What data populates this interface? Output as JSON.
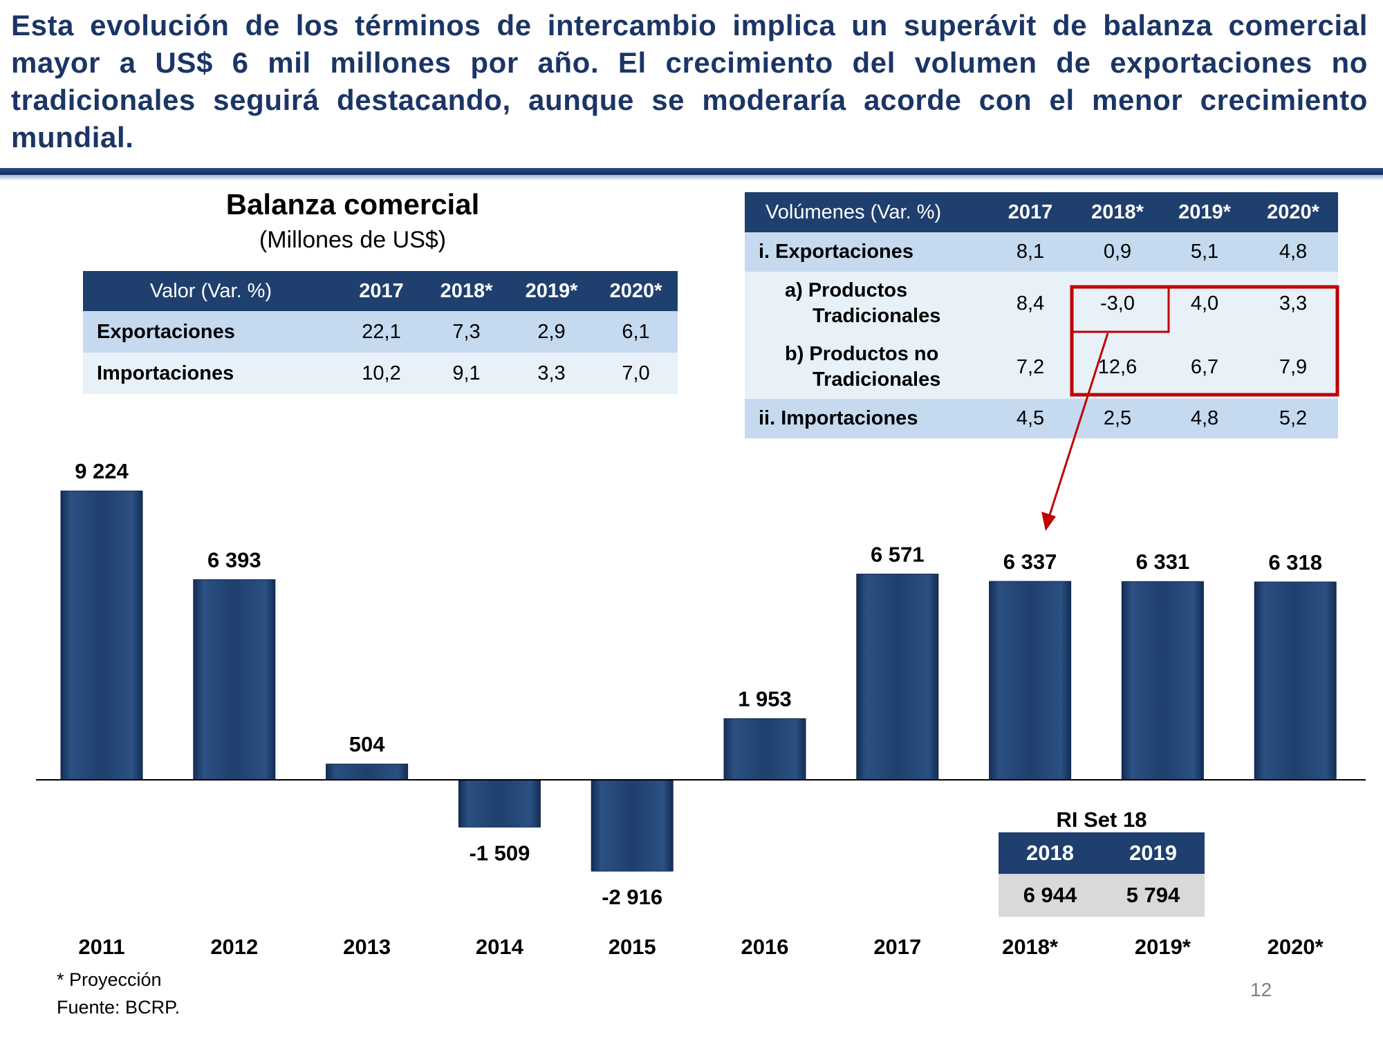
{
  "headline": "Esta evolución de los términos de intercambio implica un superávit de balanza comercial mayor a US$ 6 mil millones por año. El crecimiento del volumen de exportaciones no tradicionales seguirá destacando, aunque se moderaría acorde con el menor crecimiento mundial.",
  "chart_data": {
    "type": "bar",
    "title": "Balanza comercial",
    "subtitle": "(Millones de US$)",
    "categories": [
      "2011",
      "2012",
      "2013",
      "2014",
      "2015",
      "2016",
      "2017",
      "2018*",
      "2019*",
      "2020*"
    ],
    "values": [
      9224,
      6393,
      504,
      -1509,
      -2916,
      1953,
      6571,
      6337,
      6331,
      6318
    ],
    "value_labels": [
      "9 224",
      "6 393",
      "504",
      "-1 509",
      "-2 916",
      "1 953",
      "6 571",
      "6 337",
      "6 331",
      "6 318"
    ],
    "bar_color": "#1f3f6e",
    "grid": false,
    "legend": "none"
  },
  "valor_table": {
    "header": [
      "Valor  (Var. %)",
      "2017",
      "2018*",
      "2019*",
      "2020*"
    ],
    "rows": [
      {
        "label": "Exportaciones",
        "values": [
          "22,1",
          "7,3",
          "2,9",
          "6,1"
        ]
      },
      {
        "label": "Importaciones",
        "values": [
          "10,2",
          "9,1",
          "3,3",
          "7,0"
        ]
      }
    ]
  },
  "volumenes_table": {
    "header": [
      "Volúmenes  (Var. %)",
      "2017",
      "2018*",
      "2019*",
      "2020*"
    ],
    "rows": [
      {
        "label": "i.  Exportaciones",
        "values": [
          "8,1",
          "0,9",
          "5,1",
          "4,8"
        ]
      },
      {
        "label_1": "a) Productos",
        "label_2": "Tradicionales",
        "values": [
          "8,4",
          "-3,0",
          "4,0",
          "3,3"
        ]
      },
      {
        "label_1": "b) Productos no",
        "label_2": "Tradicionales",
        "values": [
          "7,2",
          "12,6",
          "6,7",
          "7,9"
        ]
      },
      {
        "label": "ii. Importaciones",
        "values": [
          "4,5",
          "2,5",
          "4,8",
          "5,2"
        ]
      }
    ]
  },
  "ri_table": {
    "title": "RI Set 18",
    "header": [
      "2018",
      "2019"
    ],
    "values": [
      "6 944",
      "5 794"
    ]
  },
  "highlight_color": "#c00000",
  "footnotes": {
    "projection": "* Proyección",
    "source": "Fuente: BCRP."
  },
  "page_number": "12"
}
